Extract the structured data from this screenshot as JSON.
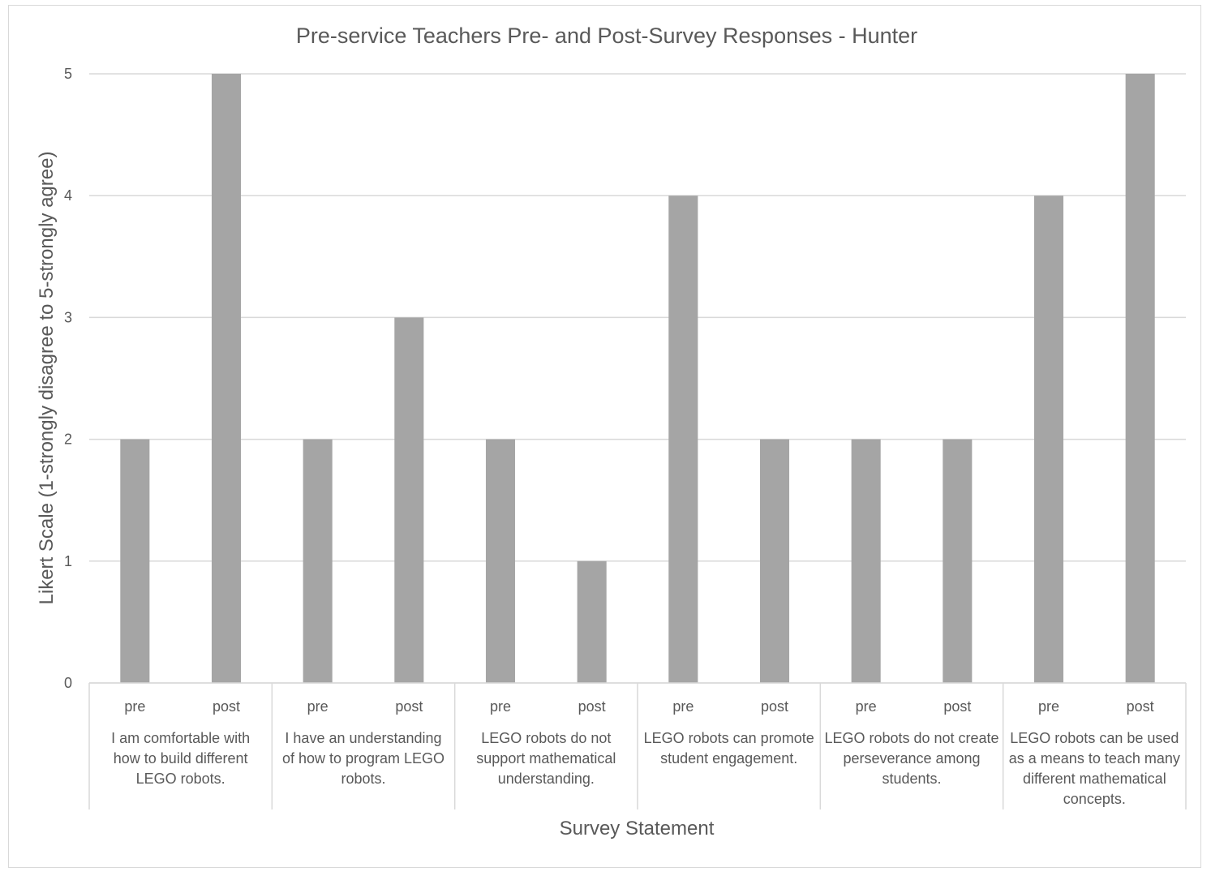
{
  "chart_data": {
    "type": "bar",
    "title": "Pre-service Teachers Pre- and Post-Survey Responses - Hunter",
    "xlabel": "Survey Statement",
    "ylabel": "Likert Scale (1-strongly disagree to 5-strongly agree)",
    "ylim": [
      0,
      5
    ],
    "yticks": [
      0,
      1,
      2,
      3,
      4,
      5
    ],
    "grid": true,
    "bar_color": "#a5a5a5",
    "groups": [
      {
        "label": "I am comfortable with how to build different LEGO robots.",
        "label_lines": [
          "I am comfortable with",
          "how to build different",
          "LEGO robots."
        ],
        "categories": [
          "pre",
          "post"
        ],
        "values": [
          2,
          5
        ]
      },
      {
        "label": "I have an understanding of how to program LEGO robots.",
        "label_lines": [
          "I have an understanding",
          "of how to program LEGO",
          "robots."
        ],
        "categories": [
          "pre",
          "post"
        ],
        "values": [
          2,
          3
        ]
      },
      {
        "label": "LEGO robots do not support mathematical understanding.",
        "label_lines": [
          "LEGO robots do not",
          "support mathematical",
          "understanding."
        ],
        "categories": [
          "pre",
          "post"
        ],
        "values": [
          2,
          1
        ]
      },
      {
        "label": "LEGO robots can promote student engagement.",
        "label_lines": [
          "LEGO robots can promote",
          "student engagement."
        ],
        "categories": [
          "pre",
          "post"
        ],
        "values": [
          4,
          2
        ]
      },
      {
        "label": "LEGO robots do not create perseverance among students.",
        "label_lines": [
          "LEGO robots do not create",
          "perseverance among",
          "students."
        ],
        "categories": [
          "pre",
          "post"
        ],
        "values": [
          2,
          2
        ]
      },
      {
        "label": "LEGO robots can be used as a means to teach many different mathematical concepts.",
        "label_lines": [
          "LEGO robots can be used",
          "as a means to teach many",
          "different mathematical",
          "concepts."
        ],
        "categories": [
          "pre",
          "post"
        ],
        "values": [
          4,
          5
        ]
      }
    ]
  }
}
